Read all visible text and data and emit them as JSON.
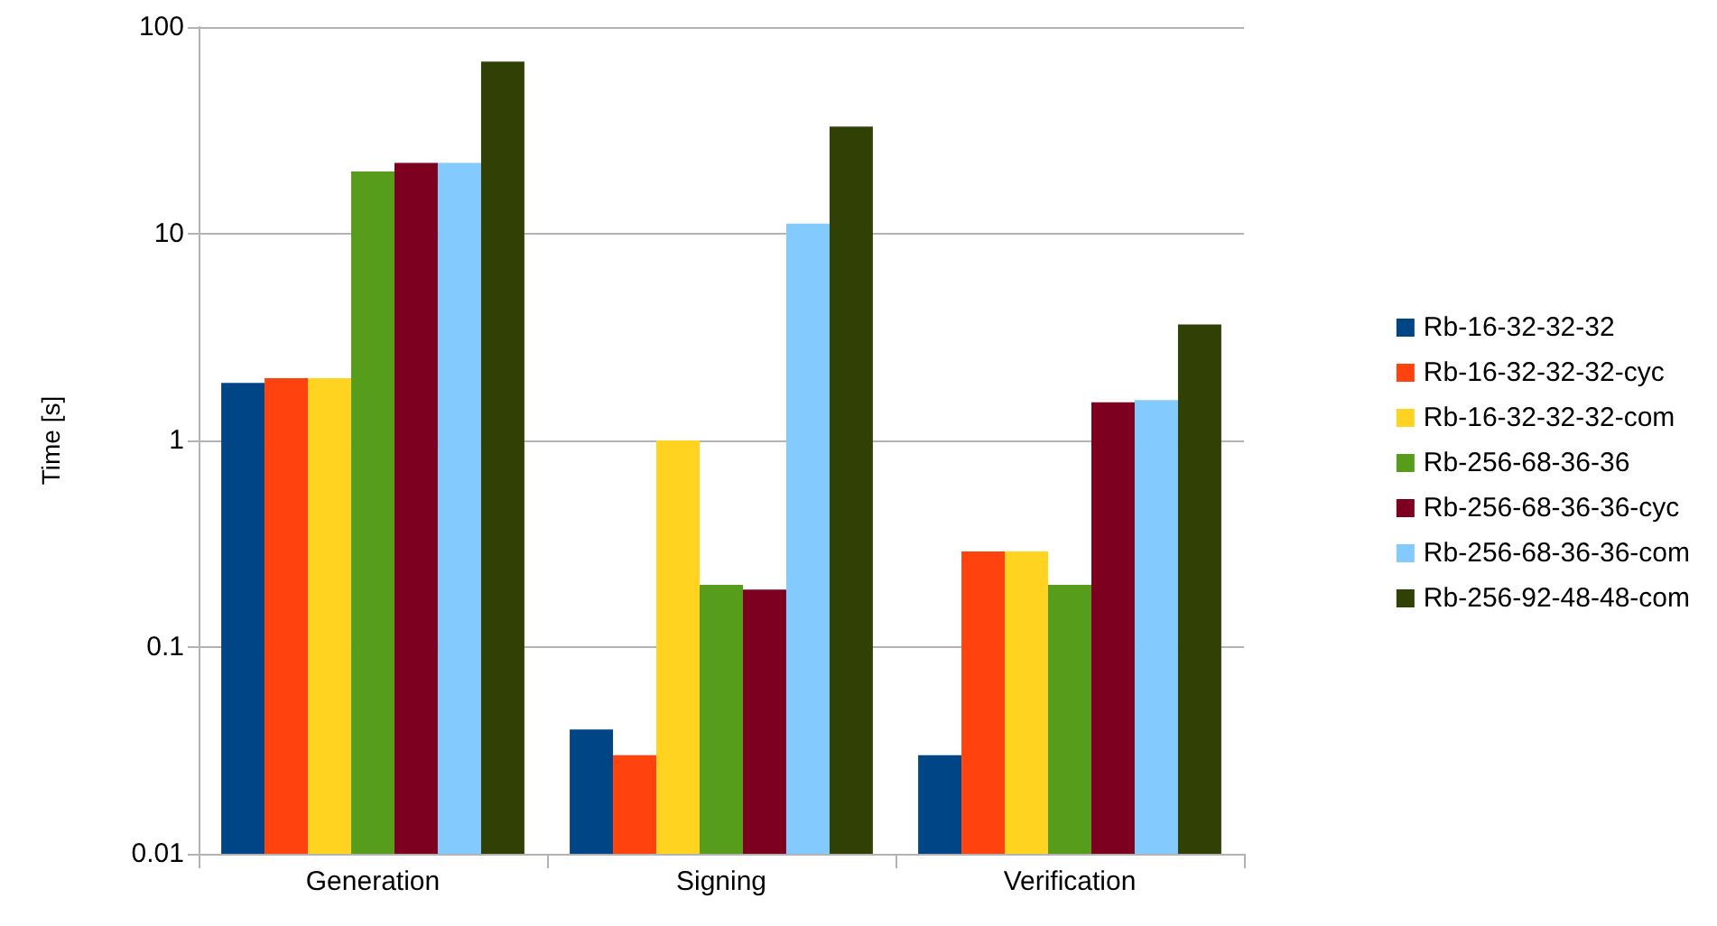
{
  "chart_data": {
    "type": "bar",
    "ylabel": "Time [s]",
    "categories": [
      "Generation",
      "Signing",
      "Verification"
    ],
    "log": "y",
    "ylim": [
      0.01,
      100
    ],
    "yticks": [
      0.01,
      0.1,
      1,
      10,
      100
    ],
    "grid": "y",
    "legend": "right",
    "series": [
      {
        "name": "Rb-16-32-32-32",
        "color": "#004586",
        "values": [
          1.9,
          0.04,
          0.03
        ]
      },
      {
        "name": "Rb-16-32-32-32-cyc",
        "color": "#ff420e",
        "values": [
          2,
          0.03,
          0.29
        ]
      },
      {
        "name": "Rb-16-32-32-32-com",
        "color": "#ffd320",
        "values": [
          2,
          1,
          0.29
        ]
      },
      {
        "name": "Rb-256-68-36-36",
        "color": "#579d1c",
        "values": [
          20,
          0.2,
          0.2
        ]
      },
      {
        "name": "Rb-256-68-36-36-cyc",
        "color": "#7e0021",
        "values": [
          22,
          0.19,
          1.53
        ]
      },
      {
        "name": "Rb-256-68-36-36-com",
        "color": "#83caff",
        "values": [
          22,
          11.2,
          1.57
        ]
      },
      {
        "name": "Rb-256-92-48-48-com",
        "color": "#314004",
        "values": [
          68,
          33,
          3.64
        ]
      }
    ]
  }
}
